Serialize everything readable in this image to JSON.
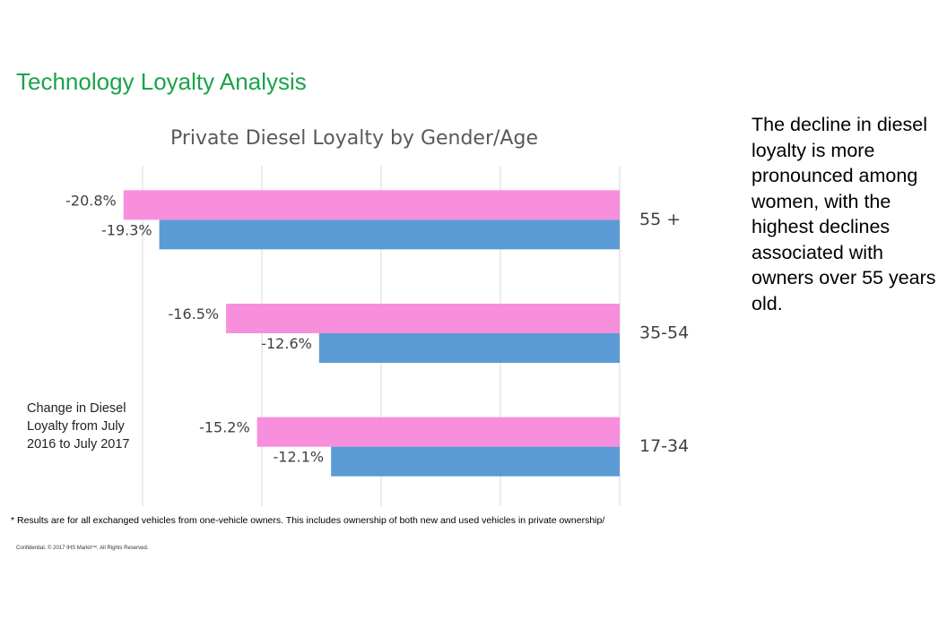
{
  "header": {
    "title": "Technology Loyalty Analysis"
  },
  "chart_data": {
    "type": "hbar",
    "title": "Private Diesel Loyalty by Gender/Age",
    "categories": [
      "55 +",
      "35-54",
      "17-34"
    ],
    "series": [
      {
        "color": "#f78fdc",
        "values": [
          -20.8,
          -16.5,
          -15.2
        ],
        "value_labels": [
          "-20.8%",
          "-16.5%",
          "-15.2%"
        ]
      },
      {
        "color": "#5b9bd5",
        "values": [
          -19.3,
          -12.6,
          -12.1
        ],
        "value_labels": [
          "-19.3%",
          "-12.6%",
          "-12.1%"
        ]
      }
    ],
    "xlim": [
      -25,
      0
    ],
    "xticks": [
      -20,
      -15,
      -10,
      -5,
      0
    ],
    "grid": true,
    "annotation": "Change in Diesel Loyalty from July 2016 to July 2017"
  },
  "side_note": "The decline in diesel loyalty is more pronounced among women, with the highest declines associated with owners over 55 years old.",
  "footnote": "* Results are for all exchanged vehicles from one-vehicle owners. This includes ownership of both new and used vehicles in private ownership/",
  "copyright": "Confidential. © 2017 IHS Markit™. All Rights Reserved."
}
